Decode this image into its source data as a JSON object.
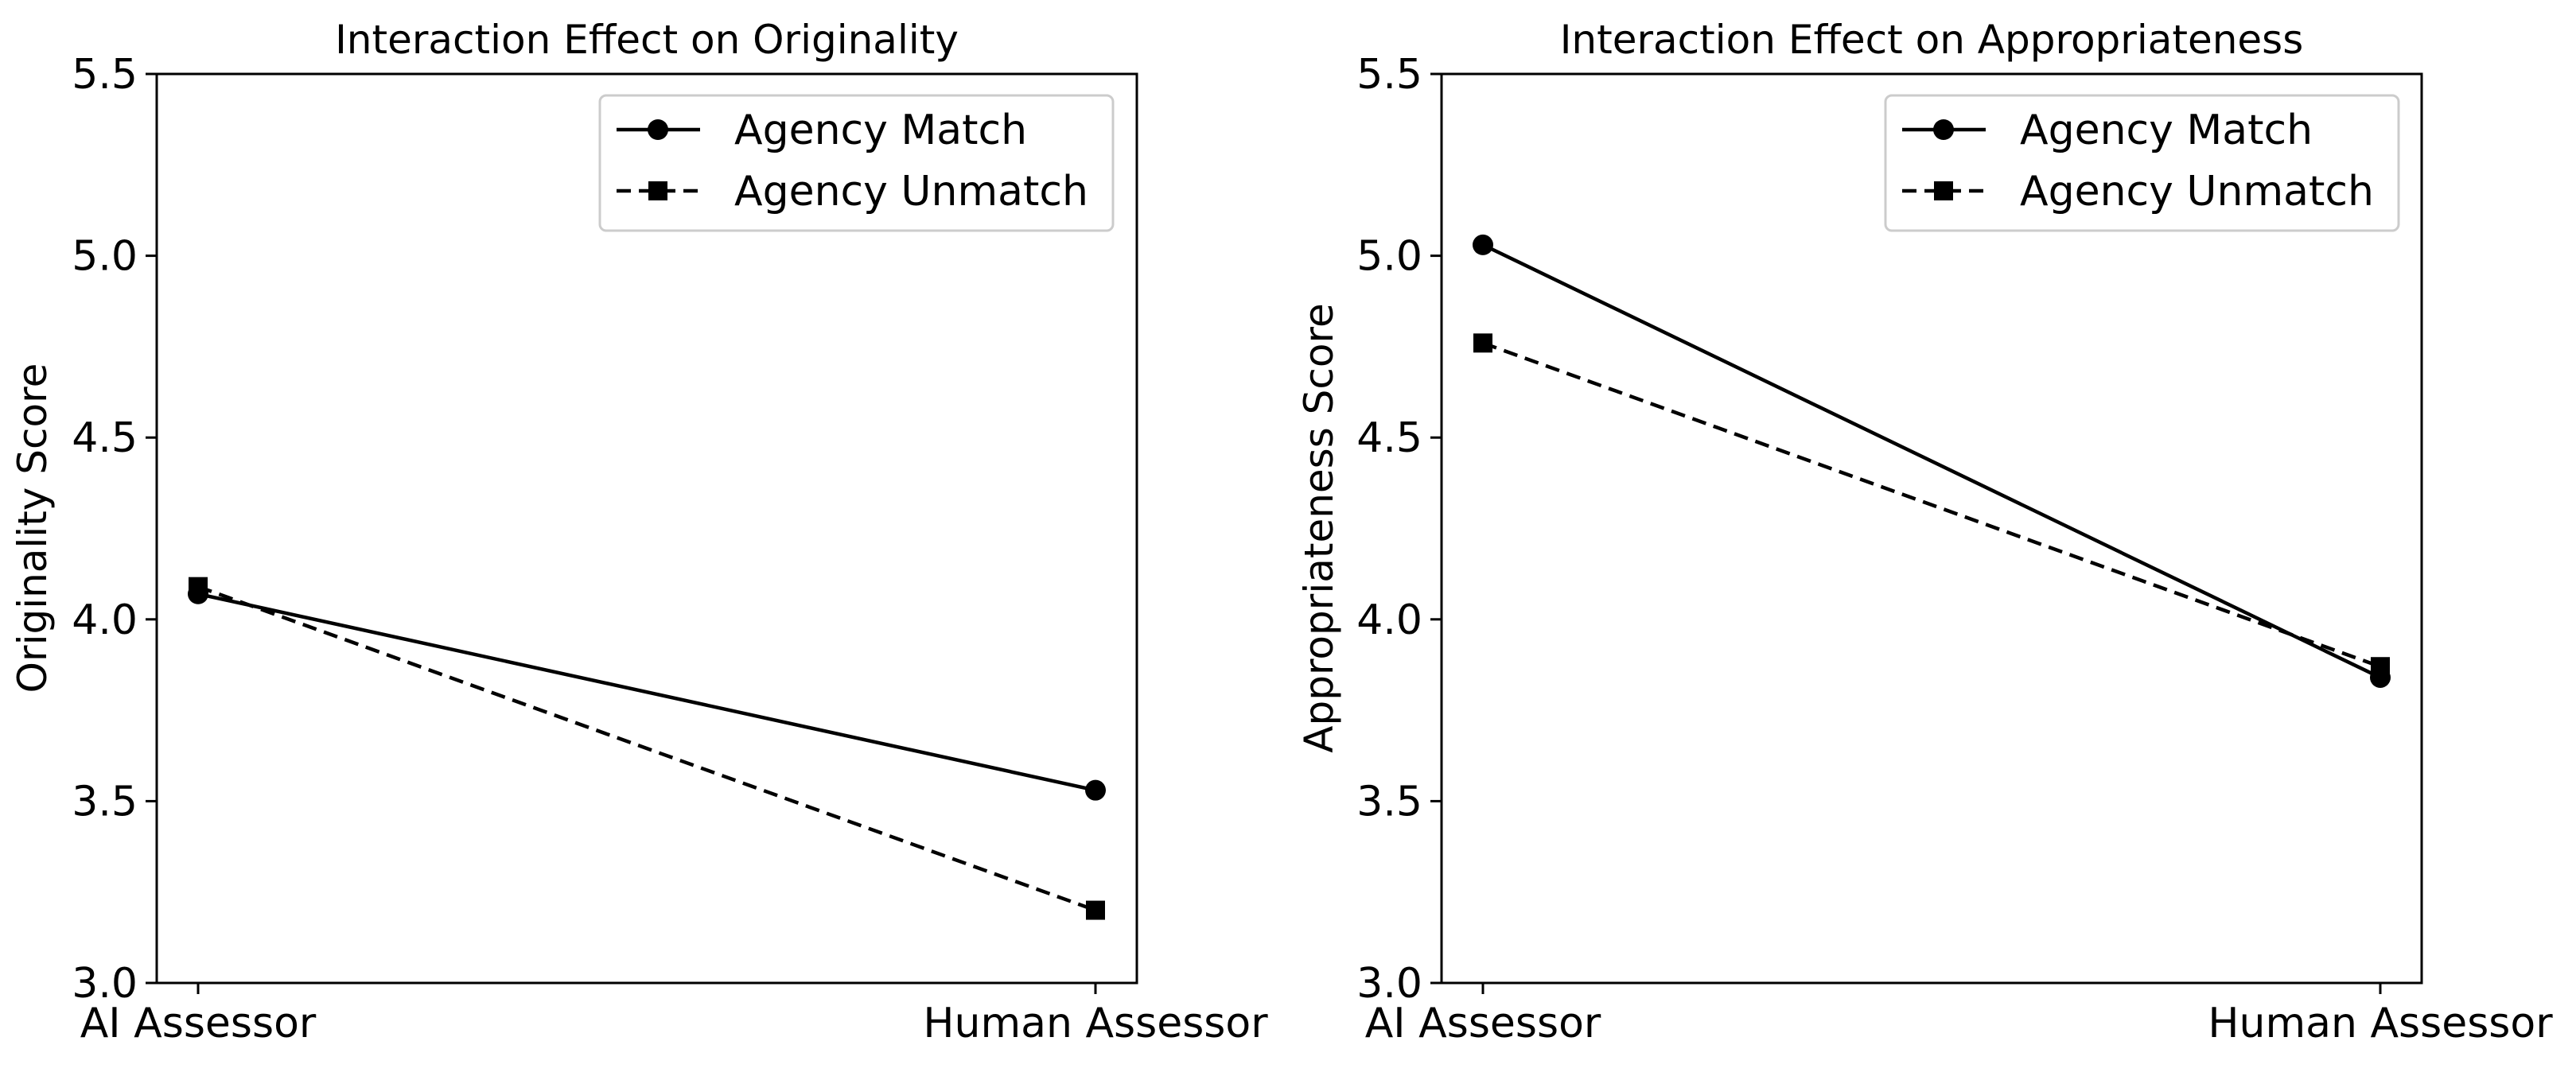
{
  "chart_data": [
    {
      "type": "line",
      "title": "Interaction Effect on Originality",
      "xlabel": "",
      "ylabel": "Originality Score",
      "categories": [
        "AI Assessor",
        "Human Assessor"
      ],
      "ylim": [
        3.0,
        5.5
      ],
      "yticks": [
        "3.0",
        "3.5",
        "4.0",
        "4.5",
        "5.0",
        "5.5"
      ],
      "grid": false,
      "legend_position": "top-right",
      "series": [
        {
          "name": "Agency Match",
          "values": [
            4.07,
            3.53
          ],
          "linestyle": "solid",
          "marker": "circle",
          "color": "#000000"
        },
        {
          "name": "Agency Unmatch",
          "values": [
            4.09,
            3.2
          ],
          "linestyle": "dashed",
          "marker": "square",
          "color": "#000000"
        }
      ]
    },
    {
      "type": "line",
      "title": "Interaction Effect on Appropriateness",
      "xlabel": "",
      "ylabel": "Appropriateness Score",
      "categories": [
        "AI Assessor",
        "Human Assessor"
      ],
      "ylim": [
        3.0,
        5.5
      ],
      "yticks": [
        "3.0",
        "3.5",
        "4.0",
        "4.5",
        "5.0",
        "5.5"
      ],
      "grid": false,
      "legend_position": "top-right",
      "series": [
        {
          "name": "Agency Match",
          "values": [
            5.03,
            3.84
          ],
          "linestyle": "solid",
          "marker": "circle",
          "color": "#000000"
        },
        {
          "name": "Agency Unmatch",
          "values": [
            4.76,
            3.87
          ],
          "linestyle": "dashed",
          "marker": "square",
          "color": "#000000"
        }
      ]
    }
  ]
}
